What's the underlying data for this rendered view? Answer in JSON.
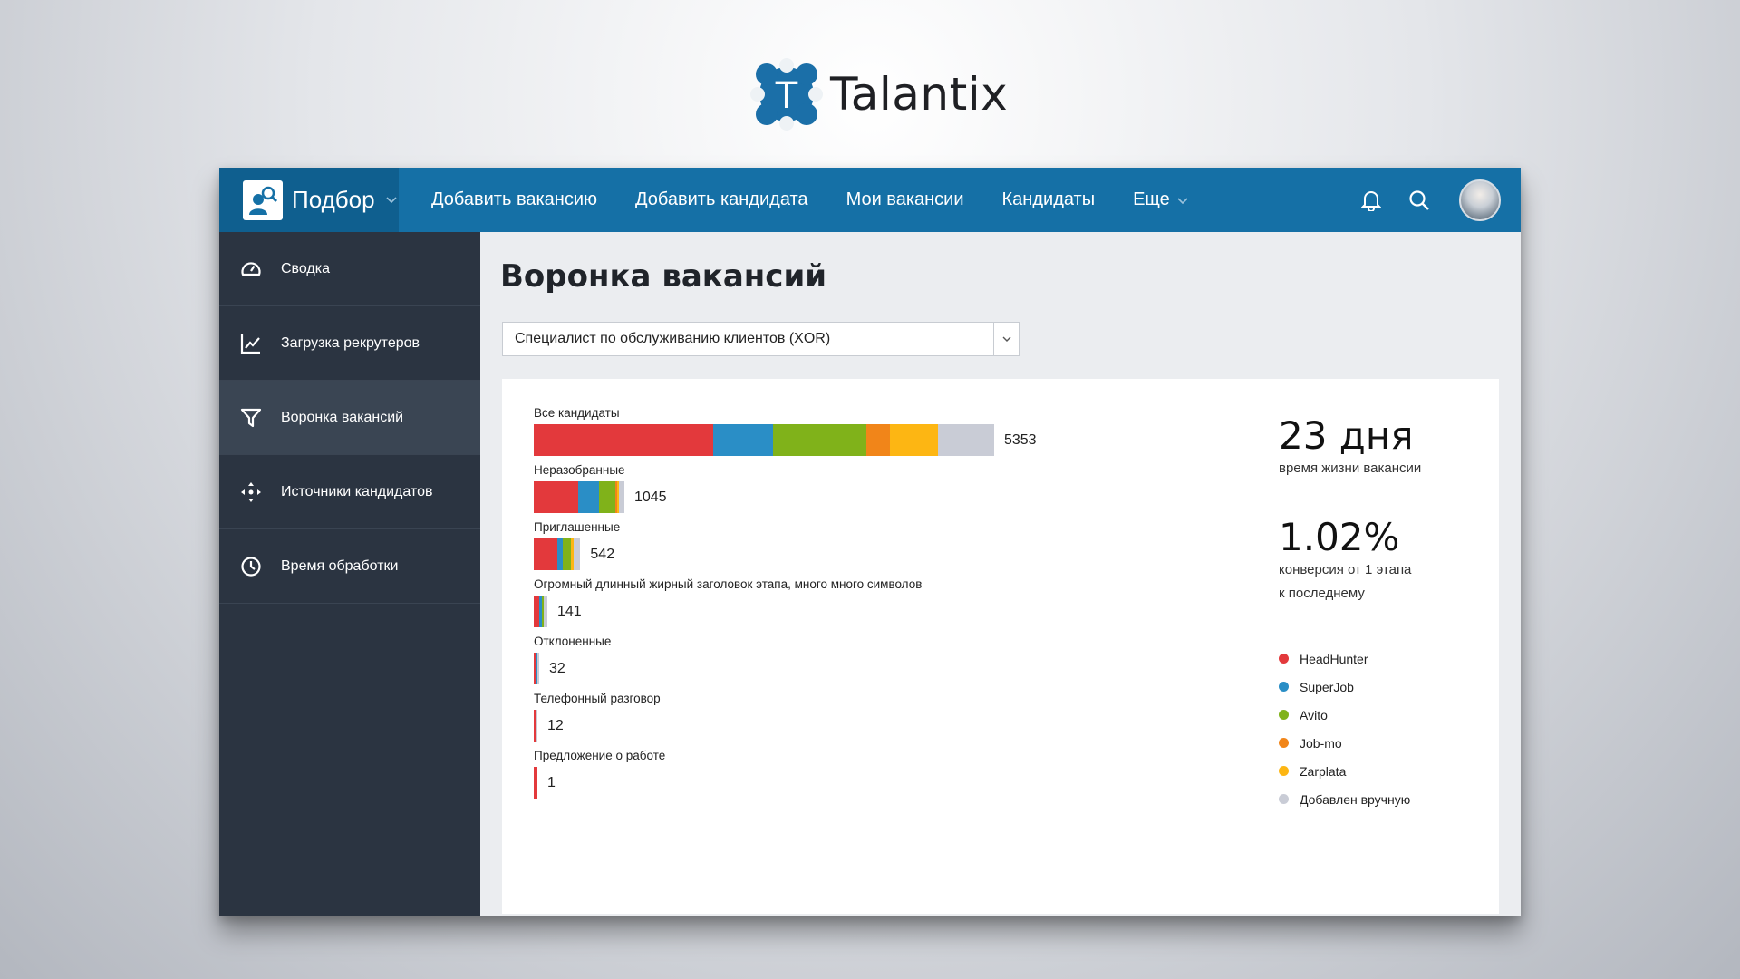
{
  "logo": {
    "mark_letter": "T",
    "name": "Talantix"
  },
  "topbar": {
    "brand": "Подбор",
    "nav": [
      "Добавить вакансию",
      "Добавить кандидата",
      "Мои вакансии",
      "Кандидаты",
      "Еще"
    ],
    "icons": [
      "bell-icon",
      "search-icon"
    ]
  },
  "sidebar": {
    "items": [
      {
        "label": "Сводка",
        "icon": "speedometer-icon"
      },
      {
        "label": "Загрузка рекрутеров",
        "icon": "line-chart-icon"
      },
      {
        "label": "Воронка вакансий",
        "icon": "funnel-icon",
        "active": true
      },
      {
        "label": "Источники кандидатов",
        "icon": "arrows-icon"
      },
      {
        "label": "Время обработки",
        "icon": "clock-icon"
      }
    ]
  },
  "main": {
    "title": "Воронка вакансий",
    "vacancy_select": "Специалист по обслуживанию клиентов (XOR)"
  },
  "stats": {
    "lifetime_value": "23 дня",
    "lifetime_label": "время жизни вакансии",
    "conversion_value": "1.02%",
    "conversion_label_1": "конверсия от 1 этапа",
    "conversion_label_2": "к последнему"
  },
  "colors": {
    "HeadHunter": "#e3393c",
    "SuperJob": "#2a8ec6",
    "Avito": "#80b21a",
    "Job-mo": "#f18519",
    "Zarplata": "#fdb613",
    "Добавлен вручную": "#c9ccd6"
  },
  "chart_data": {
    "type": "bar",
    "orientation": "horizontal",
    "stacked": true,
    "categories": [
      "Все кандидаты",
      "Неразобранные",
      "Приглашенные",
      "Огромный длинный жирный заголовок этапа, много много символов",
      "Отклоненные",
      "Телефонный разговор",
      "Предложение о работе"
    ],
    "totals": [
      5353,
      1045,
      542,
      141,
      32,
      12,
      1
    ],
    "series": [
      {
        "name": "HeadHunter",
        "values": [
          2090,
          520,
          276,
          64,
          16,
          7,
          1
        ]
      },
      {
        "name": "SuperJob",
        "values": [
          690,
          240,
          65,
          30,
          3,
          0,
          0
        ]
      },
      {
        "name": "Avito",
        "values": [
          1090,
          188,
          92,
          4,
          0,
          0,
          0
        ]
      },
      {
        "name": "Job-mo",
        "values": [
          275,
          12,
          0,
          0,
          0,
          0,
          0
        ]
      },
      {
        "name": "Zarplata",
        "values": [
          555,
          26,
          28,
          0,
          0,
          0,
          0
        ]
      },
      {
        "name": "Добавлен вручную",
        "values": [
          653,
          59,
          81,
          43,
          13,
          5,
          0
        ]
      }
    ],
    "legend_position": "right"
  }
}
